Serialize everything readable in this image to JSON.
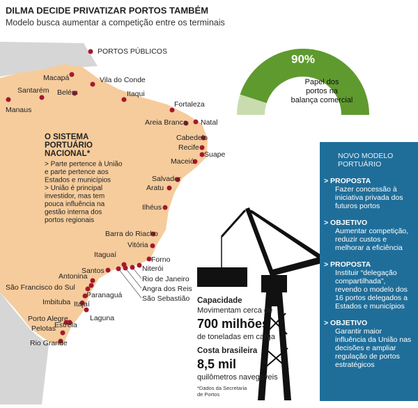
{
  "header": {
    "title": "DILMA DECIDE PRIVATIZAR PORTOS TAMBÉM",
    "subtitle": "Modelo busca aumentar a competição entre os terminais"
  },
  "legend": {
    "label": "PORTOS PÚBLICOS"
  },
  "map": {
    "ports": [
      {
        "name": "Manaus"
      },
      {
        "name": "Santarém"
      },
      {
        "name": "Macapá"
      },
      {
        "name": "Belém"
      },
      {
        "name": "Vila do Conde"
      },
      {
        "name": "Itaqui"
      },
      {
        "name": "Fortaleza"
      },
      {
        "name": "Areia Branca"
      },
      {
        "name": "Natal"
      },
      {
        "name": "Cabedelo"
      },
      {
        "name": "Recife"
      },
      {
        "name": "Suape"
      },
      {
        "name": "Maceió"
      },
      {
        "name": "Salvador"
      },
      {
        "name": "Aratu"
      },
      {
        "name": "Ilhéus"
      },
      {
        "name": "Barra do Riacho"
      },
      {
        "name": "Vitória"
      },
      {
        "name": "Forno"
      },
      {
        "name": "Itaguaí"
      },
      {
        "name": "Niterói"
      },
      {
        "name": "Rio de Janeiro"
      },
      {
        "name": "Angra dos Reis"
      },
      {
        "name": "São Sebastião"
      },
      {
        "name": "Santos"
      },
      {
        "name": "Antonina"
      },
      {
        "name": "São Francisco do Sul"
      },
      {
        "name": "Paranaguá"
      },
      {
        "name": "Imbituba"
      },
      {
        "name": "Itajaí"
      },
      {
        "name": "Laguna"
      },
      {
        "name": "Porto Alegre"
      },
      {
        "name": "Estrela"
      },
      {
        "name": "Pelotas"
      },
      {
        "name": "Rio Grande"
      }
    ],
    "system": {
      "title_lines": [
        "O SISTEMA",
        "PORTUÁRIO",
        "NACIONAL*"
      ],
      "lines": [
        "> Parte pertence à União",
        "e parte pertence aos",
        "Estados e municípios",
        "> União é principal",
        "investidor, mas tem",
        "pouca influência na",
        "gestão interna dos",
        "portos regionais"
      ]
    }
  },
  "gauge": {
    "value": 90,
    "value_label": "90%",
    "label_lines": [
      "Papel dos",
      "portos na",
      "balança comercial"
    ]
  },
  "stats": {
    "capacity": {
      "heading": "Capacidade",
      "text": "Movimentam cerca de",
      "value": "700 milhões",
      "unit": "de toneladas em carga"
    },
    "coast": {
      "heading": "Costa brasileira",
      "value": "8,5 mil",
      "unit": "quilômetros navegáveis"
    },
    "footnote_lines": [
      "*Dados da Secretaria",
      "de Portos"
    ]
  },
  "panel": {
    "title_lines": [
      "NOVO MODELO",
      "PORTUÁRIO"
    ],
    "sections": [
      {
        "heading": "> PROPOSTA",
        "lines": [
          "Fazer concessão à",
          "iniciativa privada dos",
          "futuros portos"
        ]
      },
      {
        "heading": "> OBJETIVO",
        "lines": [
          "Aumentar competição,",
          "reduzir custos e",
          "melhorar a eficiência"
        ]
      },
      {
        "heading": "> PROPOSTA",
        "lines": [
          "Instituir “delegação",
          "compartilhada”,",
          "revendo o modelo dos",
          "16 portos delegados a",
          "Estados e municípios"
        ]
      },
      {
        "heading": "> OBJETIVO",
        "lines": [
          "Garantir maior",
          "influência da União nas",
          "decisões e ampliar",
          "regulação de portos",
          "estratégicos"
        ]
      }
    ]
  }
}
